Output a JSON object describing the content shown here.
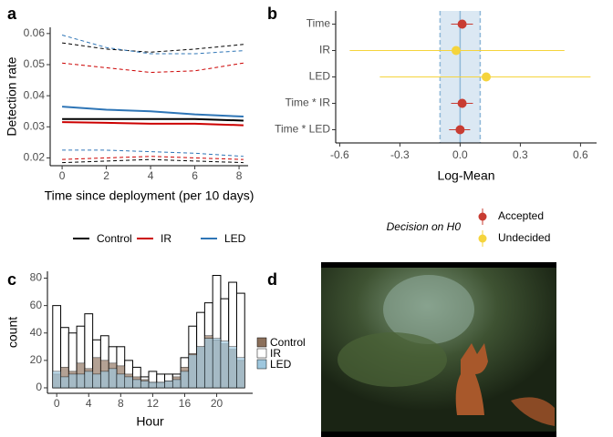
{
  "panel_labels": [
    "a",
    "b",
    "c",
    "d"
  ],
  "chart_data": [
    {
      "type": "line",
      "xlabel": "Time since deployment (per 10 days)",
      "ylabel": "Detection rate",
      "x": [
        0,
        2,
        4,
        6,
        8.2
      ],
      "xlim": [
        -0.54,
        8.41
      ],
      "xticks": [
        0,
        2,
        4,
        6,
        8
      ],
      "ylim": [
        0.0175,
        0.062
      ],
      "yticks": [
        0.02,
        0.03,
        0.04,
        0.05,
        0.06
      ],
      "legend": "bottom",
      "series": [
        {
          "name": "Control",
          "color": "#000000",
          "values": [
            0.0325,
            0.0325,
            0.0325,
            0.0325,
            0.032
          ],
          "lower": [
            0.0185,
            0.019,
            0.0195,
            0.019,
            0.0185
          ],
          "upper": [
            0.057,
            0.055,
            0.054,
            0.055,
            0.0565
          ]
        },
        {
          "name": "IR",
          "color": "#cc0000",
          "values": [
            0.0315,
            0.0313,
            0.031,
            0.031,
            0.0305
          ],
          "lower": [
            0.0195,
            0.02,
            0.0205,
            0.02,
            0.0195
          ],
          "upper": [
            0.0505,
            0.049,
            0.0475,
            0.048,
            0.0505
          ]
        },
        {
          "name": "LED",
          "color": "#2e75b6",
          "values": [
            0.0365,
            0.0355,
            0.035,
            0.034,
            0.0333
          ],
          "lower": [
            0.0225,
            0.0225,
            0.022,
            0.0215,
            0.0205
          ],
          "upper": [
            0.0595,
            0.0555,
            0.0535,
            0.0535,
            0.0545
          ]
        }
      ]
    },
    {
      "type": "errorbar",
      "xlabel": "Log-Mean",
      "legend_title": "Decision on H0",
      "categories": [
        "Time",
        "IR",
        "LED",
        "Time * IR",
        "Time * LED"
      ],
      "xlim": [
        -0.62,
        0.68
      ],
      "xticks": [
        -0.6,
        -0.3,
        {
          "value": 0,
          "label": "0.0"
        },
        0.3,
        0.6
      ],
      "rope": [
        -0.1,
        0.1
      ],
      "series": [
        {
          "name": "Accepted",
          "color": "#c83c32",
          "values": [
            0.01,
            null,
            null,
            0.01,
            0
          ],
          "lower": [
            -0.045,
            null,
            null,
            -0.045,
            -0.055
          ],
          "upper": [
            0.064,
            null,
            null,
            0.064,
            0.05
          ]
        },
        {
          "name": "Undecided",
          "color": "#f5d43c",
          "values": [
            null,
            -0.02,
            0.13,
            null,
            null
          ],
          "lower": [
            null,
            -0.55,
            -0.4,
            null,
            null
          ],
          "upper": [
            null,
            0.52,
            0.65,
            null,
            null
          ]
        }
      ]
    },
    {
      "type": "histogram",
      "xlabel": "Hour",
      "ylabel": "count",
      "bins": [
        -0.5,
        0.5,
        1.5,
        2.5,
        3.5,
        4.5,
        5.5,
        6.5,
        7.5,
        8.5,
        9.5,
        10.5,
        11.5,
        12.5,
        13.5,
        14.5,
        15.5,
        16.5,
        17.5,
        18.5,
        19.5,
        20.5,
        21.5,
        22.5,
        23.5
      ],
      "xlim": [
        -1.16,
        24.5
      ],
      "xticks": [
        0,
        4,
        8,
        12,
        16,
        20
      ],
      "ylim": [
        -4,
        85
      ],
      "yticks": [
        0,
        20,
        40,
        60,
        80
      ],
      "legend": "right",
      "series": [
        {
          "name": "Control",
          "color": "#8b6f5a",
          "values": [
            10,
            15,
            12,
            18,
            14,
            22,
            20,
            18,
            16,
            10,
            8,
            6,
            4,
            4,
            5,
            8,
            15,
            25,
            30,
            38,
            35,
            32,
            28,
            20
          ]
        },
        {
          "name": "IR",
          "color": "#ffffff",
          "values": [
            60,
            44,
            40,
            45,
            54,
            35,
            38,
            30,
            30,
            20,
            15,
            8,
            12,
            10,
            10,
            10,
            22,
            45,
            55,
            62,
            82,
            65,
            77,
            69
          ]
        },
        {
          "name": "LED",
          "color": "#9ec7de",
          "values": [
            12,
            8,
            10,
            10,
            12,
            10,
            12,
            14,
            10,
            8,
            6,
            5,
            4,
            4,
            5,
            6,
            12,
            24,
            30,
            36,
            36,
            34,
            30,
            22
          ]
        }
      ]
    }
  ]
}
